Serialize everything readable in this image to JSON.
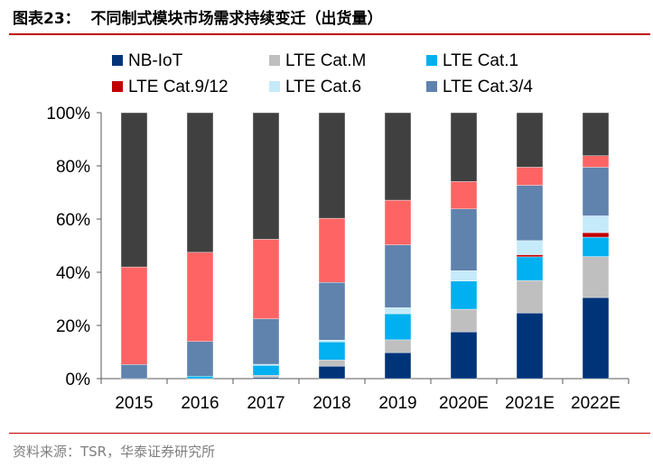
{
  "title": "图表23：  不同制式模块市场需求持续变迁（出货量）",
  "source": "资料来源：TSR，华泰证券研究所",
  "chart_data": {
    "type": "bar",
    "stacked": true,
    "categories": [
      "2015",
      "2016",
      "2017",
      "2018",
      "2019",
      "2020E",
      "2021E",
      "2022E"
    ],
    "ylim": [
      0,
      100
    ],
    "yticks": [
      "0%",
      "20%",
      "40%",
      "60%",
      "80%",
      "100%"
    ],
    "legend_position": "top",
    "grid": false,
    "series": [
      {
        "name": "NB-IoT",
        "color": "#003478",
        "values": [
          0,
          0,
          0.5,
          4.7,
          9.8,
          17.6,
          24.7,
          30.5
        ]
      },
      {
        "name": "LTE Cat.M",
        "color": "#bfbfbf",
        "values": [
          0,
          0,
          0.8,
          2.3,
          4.8,
          8.5,
          12.2,
          15.4
        ]
      },
      {
        "name": "LTE Cat.1",
        "color": "#00b0f0",
        "values": [
          0,
          0.9,
          3.7,
          6.8,
          9.8,
          10.6,
          8.9,
          7.3
        ]
      },
      {
        "name": "LTE Cat.9/12",
        "color": "#c00000",
        "values": [
          0,
          0,
          0,
          0,
          0,
          0,
          0.8,
          1.7
        ]
      },
      {
        "name": "LTE Cat.6",
        "color": "#c5eafa",
        "values": [
          0,
          0,
          0.4,
          0.7,
          2.3,
          3.9,
          5.3,
          6.3
        ]
      },
      {
        "name": "LTE Cat.3/4",
        "color": "#5f83ad",
        "values": [
          5.3,
          13.1,
          17.1,
          21.7,
          23.6,
          23.2,
          20.8,
          18.3
        ]
      },
      {
        "color": "#ff6464",
        "values": [
          36.7,
          33.5,
          29.9,
          24.1,
          16.8,
          10.3,
          6.8,
          4.3
        ]
      },
      {
        "color": "#404040",
        "values": [
          58.0,
          52.5,
          47.6,
          39.7,
          32.9,
          25.9,
          20.5,
          16.2
        ]
      }
    ]
  }
}
